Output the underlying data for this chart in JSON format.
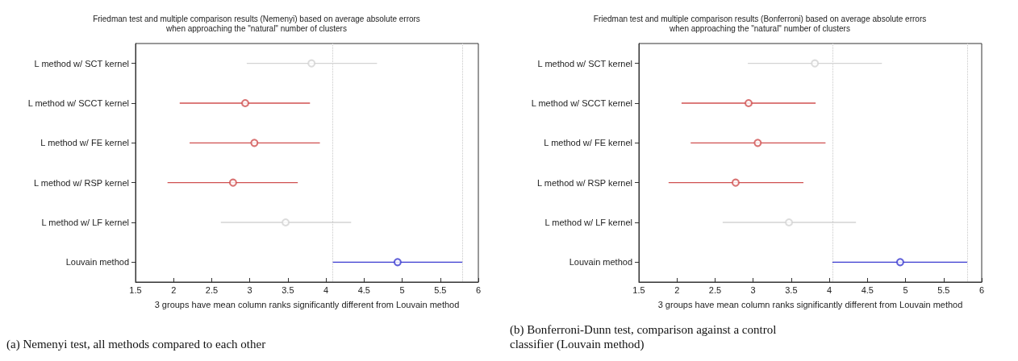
{
  "chart_data": [
    {
      "type": "scatter",
      "orientation": "horizontal",
      "title": "Friedman test and multiple comparison results (Nemenyi) based on average absolute errors\nwhen approaching the \"natural\" number of clusters",
      "xlabel": "3 groups have mean column ranks significantly different from Louvain method",
      "categories": [
        "L method w/ SCT kernel",
        "L method w/ SCCT kernel",
        "L method w/ FE kernel",
        "L method w/ RSP kernel",
        "L method w/ LF kernel",
        "Louvain method"
      ],
      "values": [
        3.81,
        2.94,
        3.06,
        2.78,
        3.47,
        4.94
      ],
      "errors": [
        [
          2.96,
          4.67
        ],
        [
          2.08,
          3.79
        ],
        [
          2.21,
          3.92
        ],
        [
          1.92,
          3.63
        ],
        [
          2.62,
          4.33
        ],
        [
          4.09,
          5.79
        ]
      ],
      "colors": [
        "#d3d3d3",
        "#d05050",
        "#d05050",
        "#d05050",
        "#d3d3d3",
        "#3a3ad0"
      ],
      "marker": "circle",
      "xlim": [
        1.5,
        6
      ],
      "xticks": [
        1.5,
        2,
        2.5,
        3,
        3.5,
        4,
        4.5,
        5,
        5.5,
        6
      ],
      "grid": false,
      "ref_lines": [
        {
          "axis": "x",
          "value": 4.09,
          "color": "#c8c8c8",
          "line_style": "dotted"
        },
        {
          "axis": "x",
          "value": 5.79,
          "color": "#c8c8c8",
          "line_style": "dotted"
        }
      ],
      "annotations": [
        "(a) Nemenyi test, all methods compared to each other"
      ]
    },
    {
      "type": "scatter",
      "orientation": "horizontal",
      "title": "Friedman test and multiple comparison results (Bonferroni) based on average absolute errors\nwhen approaching the \"natural\" number of clusters",
      "xlabel": "3 groups have mean column ranks significantly different from Louvain method",
      "categories": [
        "L method w/ SCT kernel",
        "L method w/ SCCT kernel",
        "L method w/ FE kernel",
        "L method w/ RSP kernel",
        "L method w/ LF kernel",
        "Louvain method"
      ],
      "values": [
        3.81,
        2.94,
        3.06,
        2.77,
        3.47,
        4.93
      ],
      "errors": [
        [
          2.93,
          4.69
        ],
        [
          2.06,
          3.82
        ],
        [
          2.18,
          3.95
        ],
        [
          1.89,
          3.66
        ],
        [
          2.6,
          4.35
        ],
        [
          4.04,
          5.81
        ]
      ],
      "colors": [
        "#d3d3d3",
        "#d05050",
        "#d05050",
        "#d05050",
        "#d3d3d3",
        "#3a3ad0"
      ],
      "marker": "circle",
      "xlim": [
        1.5,
        6
      ],
      "xticks": [
        1.5,
        2,
        2.5,
        3,
        3.5,
        4,
        4.5,
        5,
        5.5,
        6
      ],
      "grid": false,
      "ref_lines": [
        {
          "axis": "x",
          "value": 4.04,
          "color": "#c8c8c8",
          "line_style": "dotted"
        },
        {
          "axis": "x",
          "value": 5.81,
          "color": "#c8c8c8",
          "line_style": "dotted"
        }
      ],
      "annotations": [
        "(b) Bonferroni-Dunn test, comparison against a control\nclassifier (Louvain method)"
      ]
    }
  ]
}
